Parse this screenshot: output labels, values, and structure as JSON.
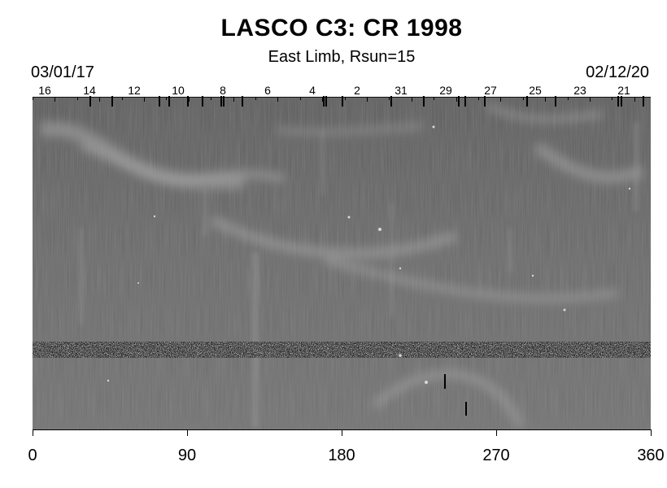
{
  "title": "LASCO C3: CR 1998",
  "subtitle": "East Limb, Rsun=15",
  "date_start": "03/01/17",
  "date_end": "02/12/20",
  "top_axis_days": [
    "16",
    "14",
    "12",
    "10",
    "8",
    "6",
    "4",
    "2",
    "31",
    "29",
    "27",
    "25",
    "23",
    "21"
  ],
  "bottom_axis": {
    "ticks": [
      "0",
      "90",
      "180",
      "270",
      "360"
    ]
  },
  "colors": {
    "background": "#ffffff",
    "image_base": "#6a6a6a"
  }
}
